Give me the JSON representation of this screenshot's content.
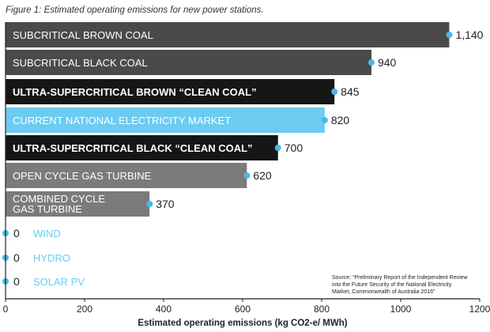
{
  "chart_data": {
    "type": "bar",
    "orientation": "horizontal",
    "title": "Figure 1: Estimated operating emissions for new power stations.",
    "xlabel": "Estimated operating emissions (kg CO2-e/ MWh)",
    "ylabel": "",
    "xlim": [
      0,
      1200
    ],
    "xticks": [
      "0",
      "200",
      "400",
      "600",
      "800",
      "1000",
      "1200"
    ],
    "categories": [
      [
        "SUBCRITICAL BROWN COAL"
      ],
      [
        "SUBCRITICAL BLACK COAL"
      ],
      [
        "ULTRA-SUPERCRITICAL BROWN “CLEAN COAL”"
      ],
      [
        "CURRENT NATIONAL ELECTRICITY MARKET"
      ],
      [
        "ULTRA-SUPERCRITICAL BLACK “CLEAN COAL”"
      ],
      [
        "OPEN CYCLE GAS TURBINE"
      ],
      [
        "COMBINED CYCLE",
        "GAS TURBINE"
      ],
      [
        "WIND"
      ],
      [
        "HYDRO"
      ],
      [
        "SOLAR PV"
      ]
    ],
    "values": [
      1140,
      940,
      845,
      820,
      700,
      620,
      370,
      0,
      0,
      0
    ],
    "value_labels": [
      "1,140",
      "940",
      "845",
      "820",
      "700",
      "620",
      "370",
      "0",
      "0",
      "0"
    ],
    "bar_colors": [
      "#4a4a4a",
      "#4a4a4a",
      "#161616",
      "#6ccbf0",
      "#161616",
      "#7b7b7b",
      "#7b7b7b",
      "#6ccbf0",
      "#6ccbf0",
      "#6ccbf0"
    ],
    "bold": [
      false,
      false,
      true,
      false,
      true,
      false,
      false,
      false,
      false,
      false
    ],
    "marker_color": "#48b9e8",
    "grid": false,
    "source_note": [
      "Source: “Preliminary Report of the Independent Review",
      "into the Future Security of the National Electricity",
      "Market, Commonwealth of Australia 2016”"
    ]
  }
}
